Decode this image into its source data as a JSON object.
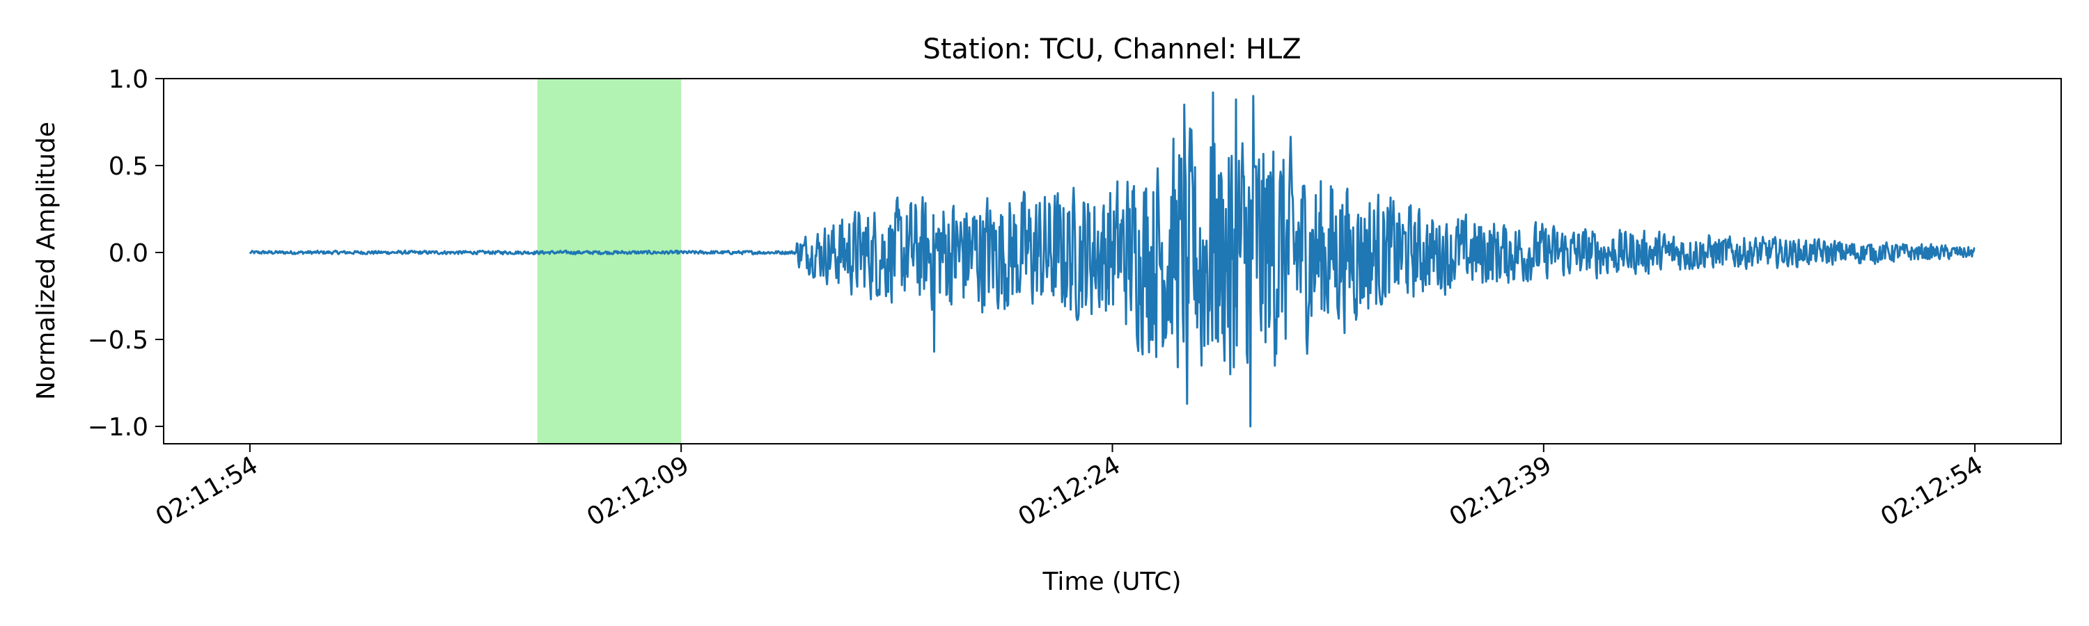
{
  "chart_data": {
    "type": "line",
    "title": "Station: TCU, Channel: HLZ",
    "xlabel": "Time (UTC)",
    "ylabel": "Normalized Amplitude",
    "xlim": [
      "02:11:51",
      "02:12:57"
    ],
    "ylim": [
      -1.1,
      1.0
    ],
    "x_ticks": [
      "02:11:54",
      "02:12:09",
      "02:12:24",
      "02:12:39",
      "02:12:54"
    ],
    "y_ticks": [
      "1.0",
      "0.5",
      "0.0",
      "−0.5",
      "−1.0"
    ],
    "y_tick_values": [
      1.0,
      0.5,
      0.0,
      -0.5,
      -1.0
    ],
    "grid": false,
    "series": [
      {
        "color": "#1f77b4",
        "x_range": [
          "02:11:54",
          "02:12:54"
        ],
        "envelope_start": "02:12:13",
        "envelope": [
          {
            "t": "02:12:13",
            "amp": 0.1
          },
          {
            "t": "02:12:15",
            "amp": 0.3
          },
          {
            "t": "02:12:18",
            "amp": 0.4
          },
          {
            "t": "02:12:21",
            "amp": 0.42
          },
          {
            "t": "02:12:24",
            "amp": 0.48
          },
          {
            "t": "02:12:26",
            "amp": 0.8
          },
          {
            "t": "02:12:29",
            "amp": 0.9
          },
          {
            "t": "02:12:31",
            "amp": 0.6
          },
          {
            "t": "02:12:35",
            "amp": 0.28
          },
          {
            "t": "02:12:40",
            "amp": 0.18
          },
          {
            "t": "02:12:45",
            "amp": 0.12
          },
          {
            "t": "02:12:50",
            "amp": 0.08
          },
          {
            "t": "02:12:54",
            "amp": 0.04
          }
        ],
        "peaks": [
          {
            "t": "02:12:26.5",
            "value": 0.85
          },
          {
            "t": "02:12:26.6",
            "value": -0.87
          },
          {
            "t": "02:12:27.5",
            "value": 0.92
          },
          {
            "t": "02:12:28.3",
            "value": 0.88
          },
          {
            "t": "02:12:28.8",
            "value": -1.0
          },
          {
            "t": "02:12:28.9",
            "value": 0.9
          },
          {
            "t": "02:12:27.1",
            "value": -0.65
          },
          {
            "t": "02:12:28.1",
            "value": -0.7
          },
          {
            "t": "02:12:29.6",
            "value": 0.58
          },
          {
            "t": "02:12:17.8",
            "value": -0.57
          }
        ]
      }
    ],
    "highlight": {
      "start": "02:12:04",
      "end": "02:12:09",
      "color": "#b2f2b2"
    }
  }
}
